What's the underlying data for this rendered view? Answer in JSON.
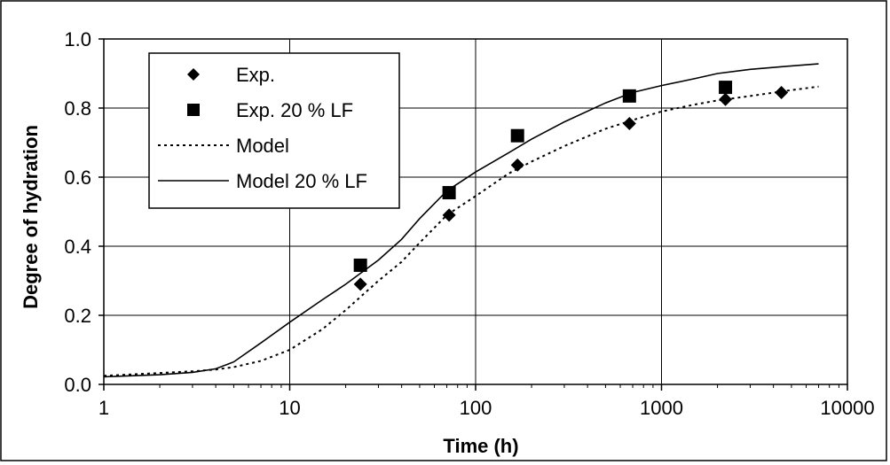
{
  "chart_data": {
    "type": "scatter",
    "title": "",
    "xlabel": "Time (h)",
    "ylabel": "Degree of hydration",
    "xscale": "log",
    "xlim": [
      1,
      10000
    ],
    "ylim": [
      0,
      1
    ],
    "xticks": [
      1,
      10,
      100,
      1000,
      10000
    ],
    "xtick_labels": [
      "1",
      "10",
      "100",
      "1000",
      "10000"
    ],
    "yticks": [
      0,
      0.2,
      0.4,
      0.6,
      0.8,
      1.0
    ],
    "ytick_labels": [
      "0.0",
      "0.2",
      "0.4",
      "0.6",
      "0.8",
      "1.0"
    ],
    "grid": true,
    "legend_position": "top-left",
    "series": [
      {
        "name": "Exp.",
        "kind": "points",
        "marker": "diamond",
        "color": "#000000",
        "x": [
          24,
          72,
          168,
          672,
          2208,
          4416
        ],
        "y": [
          0.29,
          0.49,
          0.635,
          0.755,
          0.825,
          0.845
        ]
      },
      {
        "name": "Exp. 20 % LF",
        "kind": "points",
        "marker": "square",
        "color": "#000000",
        "x": [
          24,
          72,
          168,
          672,
          2208
        ],
        "y": [
          0.345,
          0.555,
          0.72,
          0.835,
          0.86
        ]
      },
      {
        "name": "Model",
        "kind": "line",
        "style": "dotted",
        "color": "#000000",
        "x": [
          1,
          2,
          3,
          4,
          5,
          7,
          10,
          15,
          20,
          30,
          40,
          50,
          70,
          100,
          150,
          200,
          300,
          500,
          700,
          1000,
          1500,
          2000,
          3000,
          5000,
          7000
        ],
        "y": [
          0.025,
          0.033,
          0.038,
          0.043,
          0.05,
          0.068,
          0.1,
          0.16,
          0.215,
          0.3,
          0.355,
          0.41,
          0.49,
          0.545,
          0.61,
          0.645,
          0.69,
          0.74,
          0.765,
          0.79,
          0.81,
          0.822,
          0.835,
          0.852,
          0.862
        ]
      },
      {
        "name": "Model 20 % LF",
        "kind": "line",
        "style": "solid",
        "color": "#000000",
        "x": [
          1,
          2,
          3,
          4,
          5,
          7,
          10,
          15,
          20,
          30,
          40,
          50,
          70,
          100,
          150,
          200,
          300,
          500,
          700,
          1000,
          1500,
          2000,
          3000,
          5000,
          7000
        ],
        "y": [
          0.022,
          0.028,
          0.035,
          0.045,
          0.065,
          0.12,
          0.18,
          0.245,
          0.29,
          0.36,
          0.42,
          0.48,
          0.56,
          0.615,
          0.67,
          0.71,
          0.76,
          0.815,
          0.845,
          0.865,
          0.885,
          0.9,
          0.912,
          0.922,
          0.928
        ]
      }
    ]
  }
}
